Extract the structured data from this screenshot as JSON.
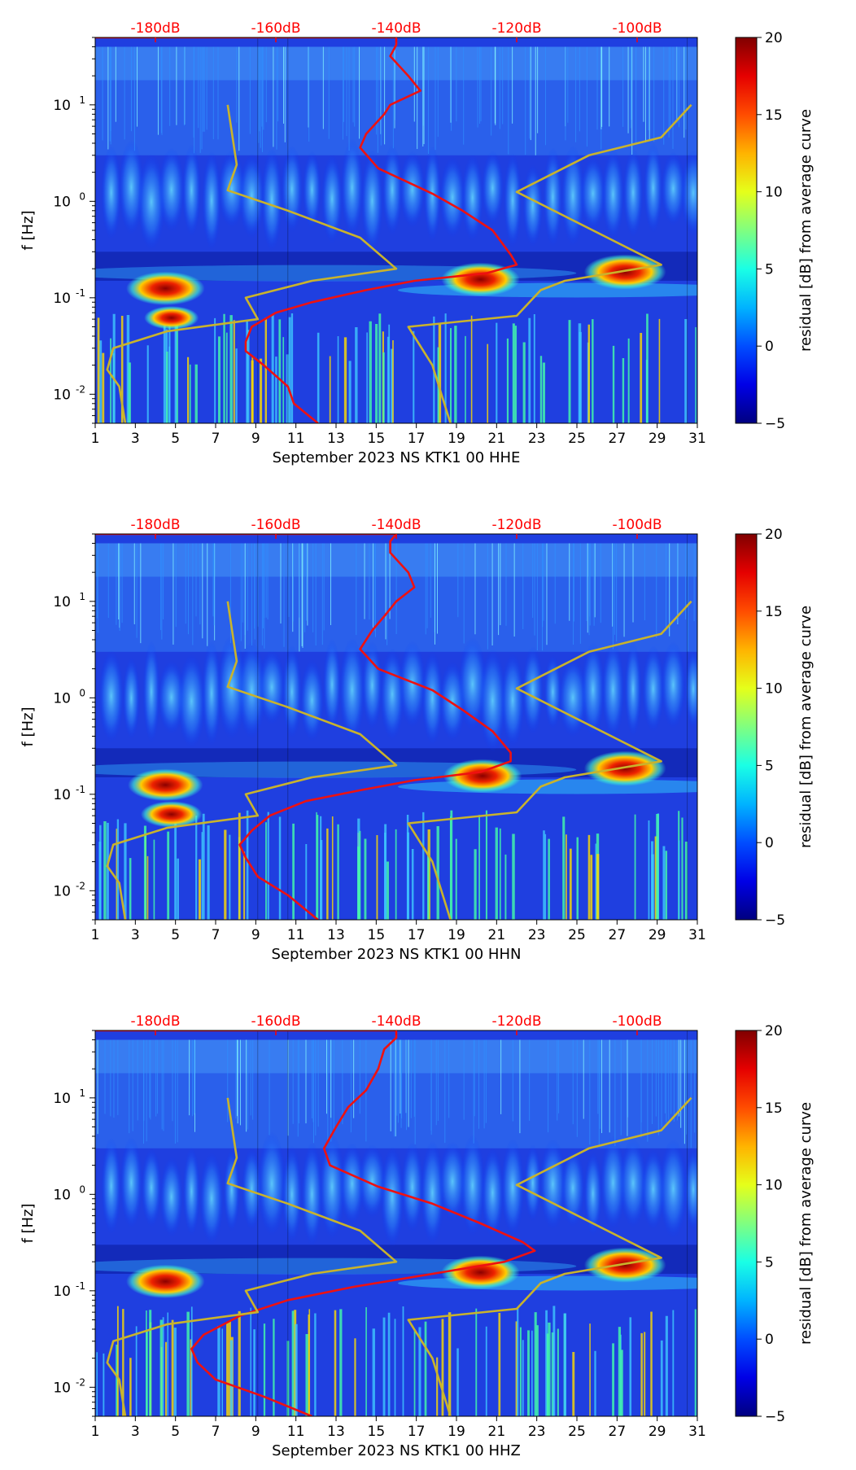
{
  "chart_data": [
    {
      "type": "heatmap",
      "title": "",
      "xlabel": "September 2023 NS KTK1 00 HHE",
      "ylabel": "f [Hz]",
      "x_ticks": [
        "1",
        "3",
        "5",
        "7",
        "9",
        "11",
        "13",
        "15",
        "17",
        "19",
        "21",
        "23",
        "25",
        "27",
        "29",
        "31"
      ],
      "xlim": [
        1,
        31
      ],
      "ylim": [
        0.005,
        50
      ],
      "y_scale": "log",
      "y_ticks": [
        {
          "label": "10",
          "exp": "-2",
          "value": 0.01
        },
        {
          "label": "10",
          "exp": "-1",
          "value": 0.1
        },
        {
          "label": "10",
          "exp": "0",
          "value": 1
        },
        {
          "label": "10",
          "exp": "1",
          "value": 10
        }
      ],
      "db_axis": {
        "labels": [
          "-180dB",
          "-160dB",
          "-140dB",
          "-120dB",
          "-100dB"
        ],
        "values": [
          -180,
          -160,
          -140,
          -120,
          -100
        ],
        "range": [
          -190,
          -90
        ]
      },
      "colorbar": {
        "label": "residual [dB] from average curve",
        "ticks": [
          "−5",
          "0",
          "5",
          "10",
          "15",
          "20"
        ],
        "range": [
          -5,
          20
        ]
      },
      "series": [
        {
          "name": "station PSD curve (dB)",
          "color": "#ee1111",
          "points": [
            [
              -190,
              50
            ],
            [
              -140,
              50
            ],
            [
              -140,
              42
            ],
            [
              -141,
              32
            ],
            [
              -138,
              20
            ],
            [
              -136,
              14
            ],
            [
              -141,
              10
            ],
            [
              -142,
              8
            ],
            [
              -145,
              5
            ],
            [
              -146,
              3.6
            ],
            [
              -143,
              2.2
            ],
            [
              -134,
              1.2
            ],
            [
              -129,
              0.8
            ],
            [
              -124,
              0.5
            ],
            [
              -121,
              0.28
            ],
            [
              -120,
              0.22
            ],
            [
              -125,
              0.18
            ],
            [
              -137,
              0.15
            ],
            [
              -145,
              0.12
            ],
            [
              -154,
              0.09
            ],
            [
              -160,
              0.07
            ],
            [
              -164,
              0.05
            ],
            [
              -165,
              0.035
            ],
            [
              -165,
              0.028
            ],
            [
              -162,
              0.02
            ],
            [
              -158,
              0.012
            ],
            [
              -157,
              0.008
            ],
            [
              -153,
              0.005
            ]
          ]
        },
        {
          "name": "low noise model (dB)",
          "color": "#c9b32c",
          "points": [
            [
              -168,
              10
            ],
            [
              -166.5,
              2.4
            ],
            [
              -168,
              1.3
            ],
            [
              -158,
              0.8
            ],
            [
              -146,
              0.42
            ],
            [
              -140,
              0.2
            ],
            [
              -154,
              0.15
            ],
            [
              -165,
              0.1
            ],
            [
              -163,
              0.06
            ],
            [
              -178,
              0.045
            ],
            [
              -187,
              0.03
            ],
            [
              -188,
              0.018
            ],
            [
              -186,
              0.012
            ],
            [
              -185,
              0.005
            ]
          ]
        },
        {
          "name": "high noise model (dB)",
          "color": "#c9b32c",
          "points": [
            [
              -91,
              10
            ],
            [
              -96,
              4.6
            ],
            [
              -108,
              3.0
            ],
            [
              -120,
              1.25
            ],
            [
              -96,
              0.22
            ],
            [
              -112,
              0.15
            ],
            [
              -116,
              0.12
            ],
            [
              -120,
              0.065
            ],
            [
              -138,
              0.05
            ],
            [
              -134,
              0.02
            ],
            [
              -131,
              0.005
            ]
          ]
        }
      ],
      "hotspots": [
        {
          "label": "day 4-5, 0.12 Hz",
          "x": 4.5,
          "f": 0.125,
          "value": 19
        },
        {
          "label": "day 4-5, 0.06 Hz",
          "x": 4.8,
          "f": 0.062,
          "value": 12
        },
        {
          "label": "day 20, 0.15 Hz",
          "x": 20.2,
          "f": 0.155,
          "value": 19
        },
        {
          "label": "day 27, 0.18 Hz",
          "x": 27.4,
          "f": 0.185,
          "value": 20
        }
      ]
    },
    {
      "type": "heatmap",
      "title": "",
      "xlabel": "September 2023 NS KTK1 00 HHN",
      "ylabel": "f [Hz]",
      "x_ticks": [
        "1",
        "3",
        "5",
        "7",
        "9",
        "11",
        "13",
        "15",
        "17",
        "19",
        "21",
        "23",
        "25",
        "27",
        "29",
        "31"
      ],
      "xlim": [
        1,
        31
      ],
      "ylim": [
        0.005,
        50
      ],
      "y_scale": "log",
      "y_ticks": [
        {
          "label": "10",
          "exp": "-2",
          "value": 0.01
        },
        {
          "label": "10",
          "exp": "-1",
          "value": 0.1
        },
        {
          "label": "10",
          "exp": "0",
          "value": 1
        },
        {
          "label": "10",
          "exp": "1",
          "value": 10
        }
      ],
      "db_axis": {
        "labels": [
          "-180dB",
          "-160dB",
          "-140dB",
          "-120dB",
          "-100dB"
        ],
        "values": [
          -180,
          -160,
          -140,
          -120,
          -100
        ],
        "range": [
          -190,
          -90
        ]
      },
      "colorbar": {
        "label": "residual [dB] from average curve",
        "ticks": [
          "−5",
          "0",
          "5",
          "10",
          "15",
          "20"
        ],
        "range": [
          -5,
          20
        ]
      },
      "series": [
        {
          "name": "station PSD curve (dB)",
          "color": "#ee1111",
          "points": [
            [
              -190,
              50
            ],
            [
              -140,
              50
            ],
            [
              -141,
              42
            ],
            [
              -141,
              32
            ],
            [
              -138,
              20
            ],
            [
              -137,
              14
            ],
            [
              -140,
              10
            ],
            [
              -142,
              7
            ],
            [
              -144,
              5
            ],
            [
              -146,
              3.2
            ],
            [
              -143,
              2.0
            ],
            [
              -134,
              1.2
            ],
            [
              -129,
              0.75
            ],
            [
              -124,
              0.45
            ],
            [
              -121,
              0.27
            ],
            [
              -121,
              0.22
            ],
            [
              -126,
              0.17
            ],
            [
              -137,
              0.14
            ],
            [
              -146,
              0.11
            ],
            [
              -155,
              0.085
            ],
            [
              -161,
              0.06
            ],
            [
              -164,
              0.042
            ],
            [
              -166,
              0.03
            ],
            [
              -165,
              0.022
            ],
            [
              -163,
              0.014
            ],
            [
              -158,
              0.009
            ],
            [
              -153,
              0.005
            ]
          ]
        },
        {
          "name": "low noise model (dB)",
          "color": "#c9b32c",
          "points": [
            [
              -168,
              10
            ],
            [
              -166.5,
              2.4
            ],
            [
              -168,
              1.3
            ],
            [
              -158,
              0.8
            ],
            [
              -146,
              0.42
            ],
            [
              -140,
              0.2
            ],
            [
              -154,
              0.15
            ],
            [
              -165,
              0.1
            ],
            [
              -163,
              0.06
            ],
            [
              -178,
              0.045
            ],
            [
              -187,
              0.03
            ],
            [
              -188,
              0.018
            ],
            [
              -186,
              0.012
            ],
            [
              -185,
              0.005
            ]
          ]
        },
        {
          "name": "high noise model (dB)",
          "color": "#c9b32c",
          "points": [
            [
              -91,
              10
            ],
            [
              -96,
              4.6
            ],
            [
              -108,
              3.0
            ],
            [
              -120,
              1.25
            ],
            [
              -96,
              0.22
            ],
            [
              -112,
              0.15
            ],
            [
              -116,
              0.12
            ],
            [
              -120,
              0.065
            ],
            [
              -138,
              0.05
            ],
            [
              -134,
              0.02
            ],
            [
              -131,
              0.005
            ]
          ]
        }
      ],
      "hotspots": [
        {
          "label": "day 4-5, 0.12 Hz",
          "x": 4.5,
          "f": 0.125,
          "value": 18
        },
        {
          "label": "day 4-5, 0.06 Hz",
          "x": 4.8,
          "f": 0.062,
          "value": 14
        },
        {
          "label": "day 20, 0.15 Hz",
          "x": 20.3,
          "f": 0.155,
          "value": 19
        },
        {
          "label": "day 27, 0.18 Hz",
          "x": 27.4,
          "f": 0.185,
          "value": 20
        }
      ]
    },
    {
      "type": "heatmap",
      "title": "",
      "xlabel": "September 2023 NS KTK1 00 HHZ",
      "ylabel": "f [Hz]",
      "x_ticks": [
        "1",
        "3",
        "5",
        "7",
        "9",
        "11",
        "13",
        "15",
        "17",
        "19",
        "21",
        "23",
        "25",
        "27",
        "29",
        "31"
      ],
      "xlim": [
        1,
        31
      ],
      "ylim": [
        0.005,
        50
      ],
      "y_scale": "log",
      "y_ticks": [
        {
          "label": "10",
          "exp": "-2",
          "value": 0.01
        },
        {
          "label": "10",
          "exp": "-1",
          "value": 0.1
        },
        {
          "label": "10",
          "exp": "0",
          "value": 1
        },
        {
          "label": "10",
          "exp": "1",
          "value": 10
        }
      ],
      "db_axis": {
        "labels": [
          "-180dB",
          "-160dB",
          "-140dB",
          "-120dB",
          "-100dB"
        ],
        "values": [
          -180,
          -160,
          -140,
          -120,
          -100
        ],
        "range": [
          -190,
          -90
        ]
      },
      "colorbar": {
        "label": "residual [dB] from average curve",
        "ticks": [
          "−5",
          "0",
          "5",
          "10",
          "15",
          "20"
        ],
        "range": [
          -5,
          20
        ]
      },
      "series": [
        {
          "name": "station PSD curve (dB)",
          "color": "#ee1111",
          "points": [
            [
              -190,
              50
            ],
            [
              -140,
              50
            ],
            [
              -140,
              42
            ],
            [
              -142,
              32
            ],
            [
              -143,
              20
            ],
            [
              -145,
              12
            ],
            [
              -148,
              8
            ],
            [
              -150,
              5
            ],
            [
              -152,
              3.0
            ],
            [
              -151,
              2.0
            ],
            [
              -143,
              1.2
            ],
            [
              -134,
              0.8
            ],
            [
              -126,
              0.5
            ],
            [
              -119,
              0.32
            ],
            [
              -117,
              0.26
            ],
            [
              -122,
              0.2
            ],
            [
              -134,
              0.15
            ],
            [
              -147,
              0.11
            ],
            [
              -158,
              0.08
            ],
            [
              -166,
              0.055
            ],
            [
              -172,
              0.035
            ],
            [
              -174,
              0.025
            ],
            [
              -173,
              0.018
            ],
            [
              -170,
              0.012
            ],
            [
              -162,
              0.008
            ],
            [
              -154,
              0.005
            ]
          ]
        },
        {
          "name": "low noise model (dB)",
          "color": "#c9b32c",
          "points": [
            [
              -168,
              10
            ],
            [
              -166.5,
              2.4
            ],
            [
              -168,
              1.3
            ],
            [
              -158,
              0.8
            ],
            [
              -146,
              0.42
            ],
            [
              -140,
              0.2
            ],
            [
              -154,
              0.15
            ],
            [
              -165,
              0.1
            ],
            [
              -163,
              0.06
            ],
            [
              -178,
              0.045
            ],
            [
              -187,
              0.03
            ],
            [
              -188,
              0.018
            ],
            [
              -186,
              0.012
            ],
            [
              -185,
              0.005
            ]
          ]
        },
        {
          "name": "high noise model (dB)",
          "color": "#c9b32c",
          "points": [
            [
              -91,
              10
            ],
            [
              -96,
              4.6
            ],
            [
              -108,
              3.0
            ],
            [
              -120,
              1.25
            ],
            [
              -96,
              0.22
            ],
            [
              -112,
              0.15
            ],
            [
              -116,
              0.12
            ],
            [
              -120,
              0.065
            ],
            [
              -138,
              0.05
            ],
            [
              -134,
              0.02
            ],
            [
              -131,
              0.005
            ]
          ]
        }
      ],
      "hotspots": [
        {
          "label": "day 4-5, 0.12 Hz",
          "x": 4.5,
          "f": 0.125,
          "value": 19
        },
        {
          "label": "day 20, 0.15 Hz",
          "x": 20.2,
          "f": 0.155,
          "value": 19
        },
        {
          "label": "day 27, 0.18 Hz",
          "x": 27.4,
          "f": 0.185,
          "value": 20
        }
      ]
    }
  ],
  "colors": {
    "background": "#ffffff",
    "psd_curve": "#ee1111",
    "noise_models": "#c9b32c",
    "db_labels": "#ff0000",
    "colormap": "jet"
  }
}
